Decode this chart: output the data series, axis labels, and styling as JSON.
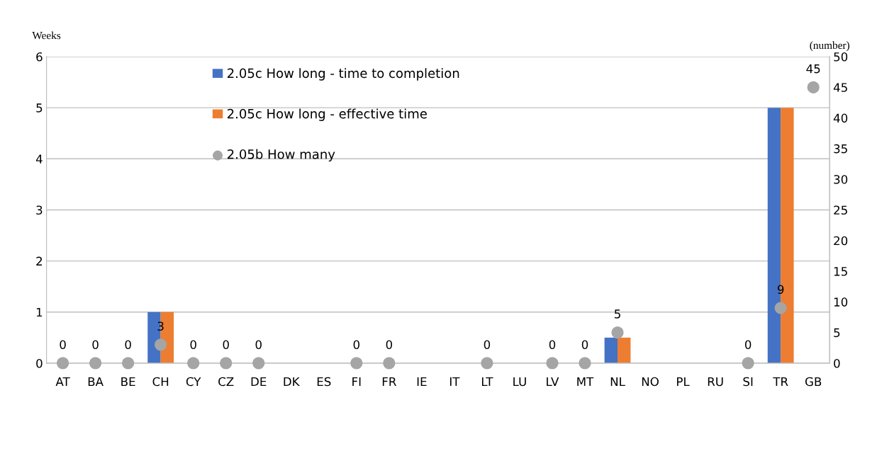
{
  "chart_data": {
    "type": "bar",
    "ylabel": "Weeks",
    "y2label": "(number)",
    "categories": [
      "AT",
      "BA",
      "BE",
      "CH",
      "CY",
      "CZ",
      "DE",
      "DK",
      "ES",
      "FI",
      "FR",
      "IE",
      "IT",
      "LT",
      "LU",
      "LV",
      "MT",
      "NL",
      "NO",
      "PL",
      "RU",
      "SI",
      "TR",
      "GB"
    ],
    "series": [
      {
        "name": "2.05c How long - time to completion",
        "color": "#4472c4",
        "values": [
          null,
          null,
          null,
          1,
          null,
          null,
          null,
          null,
          null,
          null,
          null,
          null,
          null,
          null,
          null,
          null,
          null,
          0.5,
          null,
          null,
          null,
          null,
          5,
          null
        ]
      },
      {
        "name": "2.05c How long - effective time",
        "color": "#ed7d31",
        "values": [
          null,
          null,
          null,
          1,
          null,
          null,
          null,
          null,
          null,
          null,
          null,
          null,
          null,
          null,
          null,
          null,
          null,
          0.5,
          null,
          null,
          null,
          null,
          5,
          null
        ]
      },
      {
        "name": "2.05b How many",
        "type": "scatter",
        "axis": "y2",
        "color": "#a5a5a5",
        "values": [
          0,
          0,
          0,
          3,
          0,
          0,
          0,
          null,
          null,
          0,
          0,
          null,
          null,
          0,
          null,
          0,
          0,
          5,
          null,
          null,
          null,
          0,
          9,
          45
        ],
        "value_labels": [
          "0",
          "0",
          "0",
          "3",
          "0",
          "0",
          "0",
          null,
          null,
          "0",
          "0",
          null,
          null,
          "0",
          null,
          "0",
          "0",
          "5",
          null,
          null,
          null,
          "0",
          "9",
          "45"
        ]
      }
    ],
    "ylim": [
      0,
      6
    ],
    "yticks": [
      0,
      1,
      2,
      3,
      4,
      5,
      6
    ],
    "y2lim": [
      0,
      50
    ],
    "y2ticks": [
      0,
      5,
      10,
      15,
      20,
      25,
      30,
      35,
      40,
      45,
      50
    ],
    "grid": "y",
    "legend": "top",
    "marker": "circle"
  }
}
